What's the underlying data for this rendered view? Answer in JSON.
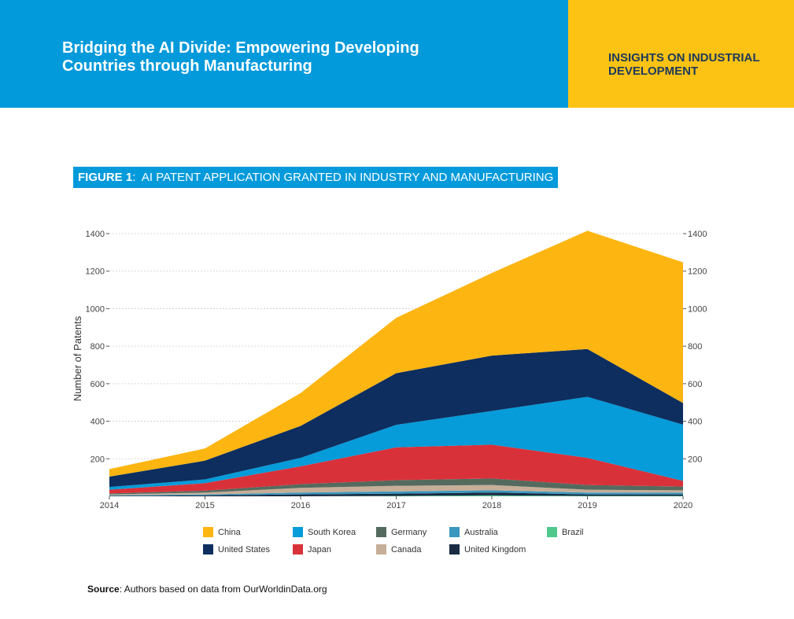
{
  "header": {
    "title_line1": "Bridging the AI Divide: Empowering Developing",
    "title_line2": "Countries through Manufacturing",
    "section_line1": "INSIGHTS ON INDUSTRIAL",
    "section_line2": "DEVELOPMENT"
  },
  "figure": {
    "label": "FIGURE 1",
    "separator": ":",
    "title": "AI PATENT APPLICATION GRANTED IN INDUSTRY AND MANUFACTURING"
  },
  "source": {
    "label": "Source",
    "text": ": Authors based on data from OurWorldinData.org"
  },
  "colors": {
    "header_blue": "#039ADB",
    "header_yellow": "#FCC214",
    "header_dark_text": "#1B3A5B"
  },
  "chart_data": {
    "type": "area",
    "stacked": true,
    "title": "AI PATENT APPLICATION GRANTED IN INDUSTRY AND MANUFACTURING",
    "xlabel": "",
    "ylabel": "Number of Patents",
    "x": [
      2014,
      2015,
      2016,
      2017,
      2018,
      2019,
      2020
    ],
    "ylim": [
      0,
      1400
    ],
    "yticks": [
      200,
      400,
      600,
      800,
      1000,
      1200,
      1400
    ],
    "grid": true,
    "legend_position": "bottom",
    "series": [
      {
        "name": "Brazil",
        "color": "#4FC88E",
        "values": [
          0,
          0,
          0,
          2,
          5,
          2,
          2
        ]
      },
      {
        "name": "United Kingdom",
        "color": "#1A2C44",
        "values": [
          2,
          5,
          10,
          12,
          15,
          8,
          8
        ]
      },
      {
        "name": "Australia",
        "color": "#3A97BD",
        "values": [
          3,
          5,
          10,
          12,
          12,
          10,
          10
        ]
      },
      {
        "name": "Canada",
        "color": "#C6AE98",
        "values": [
          5,
          10,
          25,
          30,
          28,
          15,
          12
        ]
      },
      {
        "name": "Germany",
        "color": "#556A5E",
        "values": [
          5,
          10,
          20,
          30,
          35,
          25,
          20
        ]
      },
      {
        "name": "Japan",
        "color": "#D9313A",
        "values": [
          20,
          40,
          95,
          175,
          180,
          145,
          30
        ]
      },
      {
        "name": "South Korea",
        "color": "#069BD9",
        "values": [
          15,
          20,
          45,
          120,
          180,
          325,
          300
        ]
      },
      {
        "name": "United States",
        "color": "#0D2E5E",
        "values": [
          55,
          100,
          170,
          275,
          295,
          255,
          115
        ]
      },
      {
        "name": "China",
        "color": "#FDB511",
        "values": [
          40,
          65,
          175,
          295,
          440,
          630,
          750
        ]
      }
    ],
    "legend_rows": [
      [
        "China",
        "South Korea",
        "Germany",
        "Australia",
        "Brazil"
      ],
      [
        "United States",
        "Japan",
        "Canada",
        "United Kingdom"
      ]
    ]
  }
}
